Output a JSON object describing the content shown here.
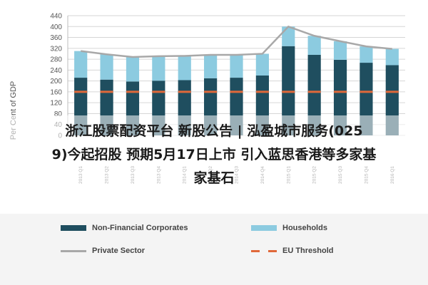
{
  "chart_data": {
    "type": "bar",
    "ylabel": "Per Cent of GDP",
    "ylim": [
      0,
      440
    ],
    "yticks": [
      0,
      40,
      80,
      120,
      160,
      200,
      240,
      280,
      320,
      360,
      400,
      440
    ],
    "categories": [
      "2013 Q1",
      "2013 Q2",
      "2013 Q3",
      "2013 Q4",
      "2014 Q1",
      "2014 Q2",
      "2014 Q3",
      "2014 Q4",
      "2015 Q1",
      "2015 Q2",
      "2015 Q3",
      "2015 Q4",
      "2016 Q1"
    ],
    "series": [
      {
        "name": "Non-Financial Corporates",
        "kind": "bar",
        "color": "#1f4e5f",
        "values": [
          212,
          205,
          198,
          201,
          203,
          210,
          212,
          220,
          328,
          296,
          278,
          267,
          258
        ]
      },
      {
        "name": "Households",
        "kind": "bar",
        "color": "#8ccbe0",
        "values": [
          98,
          93,
          90,
          90,
          89,
          86,
          84,
          80,
          72,
          70,
          68,
          60,
          60
        ]
      },
      {
        "name": "Private Sector",
        "kind": "line",
        "color": "#a8a8a8",
        "values": [
          310,
          298,
          288,
          291,
          292,
          296,
          296,
          300,
          400,
          366,
          346,
          327,
          318
        ]
      },
      {
        "name": "EU Threshold",
        "kind": "dashed",
        "color": "#e0683a",
        "values": [
          160,
          160,
          160,
          160,
          160,
          160,
          160,
          160,
          160,
          160,
          160,
          160,
          160
        ]
      }
    ],
    "grid": true,
    "legend": "bottom"
  },
  "overlay": {
    "line1": "浙江股票配资平台 新股公告 | 泓盈城市服务(025",
    "line2": "9)今起招股 预期5月17日上市 引入蓝思香港等多家基",
    "line3": "家基石"
  }
}
